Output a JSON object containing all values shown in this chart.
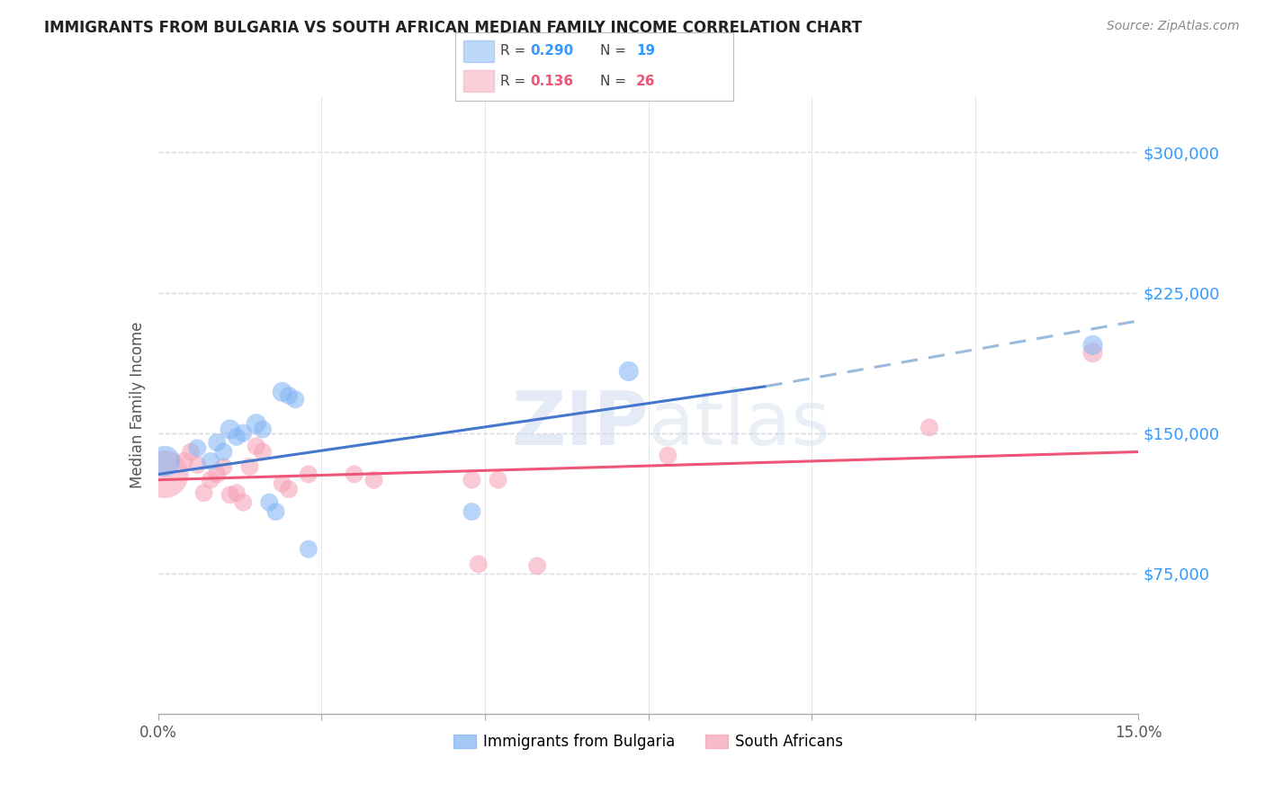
{
  "title": "IMMIGRANTS FROM BULGARIA VS SOUTH AFRICAN MEDIAN FAMILY INCOME CORRELATION CHART",
  "source": "Source: ZipAtlas.com",
  "ylabel": "Median Family Income",
  "right_yticks": [
    0,
    75000,
    150000,
    225000,
    300000
  ],
  "right_yticklabels": [
    "",
    "$75,000",
    "$150,000",
    "$225,000",
    "$300,000"
  ],
  "xlim": [
    0.0,
    0.15
  ],
  "ylim": [
    0,
    330000
  ],
  "watermark": "ZIPAtlas",
  "blue_color": "#7fb3f5",
  "pink_color": "#f5a0b5",
  "blue_line_color": "#4477cc",
  "pink_line_color": "#ee5577",
  "dashed_line_color": "#99bbdd",
  "bg_color": "#ffffff",
  "grid_color": "#ccccdd",
  "title_color": "#222222",
  "right_label_color": "#3399ff",
  "legend_r_color": "#3399ff",
  "legend_n_color": "#3399ff",
  "legend_r2_color": "#ee5577",
  "legend_n2_color": "#ee5577",
  "bulgaria_points": [
    [
      0.001,
      135000,
      55
    ],
    [
      0.006,
      142000,
      28
    ],
    [
      0.008,
      135000,
      28
    ],
    [
      0.009,
      145000,
      28
    ],
    [
      0.01,
      140000,
      28
    ],
    [
      0.011,
      152000,
      32
    ],
    [
      0.012,
      148000,
      28
    ],
    [
      0.013,
      150000,
      28
    ],
    [
      0.015,
      155000,
      32
    ],
    [
      0.016,
      152000,
      28
    ],
    [
      0.017,
      113000,
      28
    ],
    [
      0.018,
      108000,
      28
    ],
    [
      0.019,
      172000,
      32
    ],
    [
      0.02,
      170000,
      28
    ],
    [
      0.021,
      168000,
      28
    ],
    [
      0.023,
      88000,
      28
    ],
    [
      0.048,
      108000,
      28
    ],
    [
      0.072,
      183000,
      32
    ],
    [
      0.143,
      197000,
      32
    ]
  ],
  "sa_points": [
    [
      0.001,
      128000,
      95
    ],
    [
      0.004,
      135000,
      28
    ],
    [
      0.005,
      140000,
      28
    ],
    [
      0.006,
      133000,
      28
    ],
    [
      0.007,
      118000,
      28
    ],
    [
      0.008,
      125000,
      28
    ],
    [
      0.009,
      128000,
      28
    ],
    [
      0.01,
      132000,
      28
    ],
    [
      0.011,
      117000,
      28
    ],
    [
      0.012,
      118000,
      28
    ],
    [
      0.013,
      113000,
      28
    ],
    [
      0.014,
      132000,
      28
    ],
    [
      0.015,
      143000,
      28
    ],
    [
      0.016,
      140000,
      28
    ],
    [
      0.019,
      123000,
      28
    ],
    [
      0.02,
      120000,
      28
    ],
    [
      0.023,
      128000,
      28
    ],
    [
      0.03,
      128000,
      28
    ],
    [
      0.033,
      125000,
      28
    ],
    [
      0.048,
      125000,
      28
    ],
    [
      0.049,
      80000,
      28
    ],
    [
      0.052,
      125000,
      28
    ],
    [
      0.058,
      79000,
      28
    ],
    [
      0.078,
      138000,
      28
    ],
    [
      0.118,
      153000,
      28
    ],
    [
      0.143,
      193000,
      32
    ]
  ],
  "bulgaria_trendline_solid": [
    [
      0.0,
      128000
    ],
    [
      0.093,
      175000
    ]
  ],
  "bulgaria_trendline_dashed": [
    [
      0.093,
      175000
    ],
    [
      0.15,
      210000
    ]
  ],
  "sa_trendline": [
    [
      0.0,
      125000
    ],
    [
      0.15,
      140000
    ]
  ]
}
